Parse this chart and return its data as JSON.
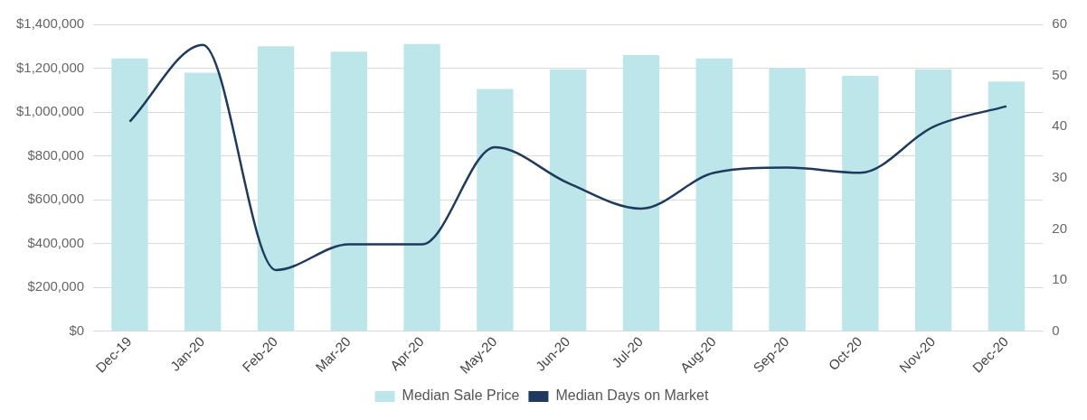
{
  "chart_data": {
    "type": "bar",
    "categories": [
      "Dec-19",
      "Jan-20",
      "Feb-20",
      "Mar-20",
      "Apr-20",
      "May-20",
      "Jun-20",
      "Jul-20",
      "Aug-20",
      "Sep-20",
      "Oct-20",
      "Nov-20",
      "Dec-20"
    ],
    "series": [
      {
        "name": "Median Sale Price",
        "color": "#bde6ea",
        "values": [
          1245000,
          1180000,
          1300000,
          1275000,
          1310000,
          1105000,
          1195000,
          1260000,
          1245000,
          1200000,
          1165000,
          1195000,
          1140000
        ]
      },
      {
        "name": "Median Days on Market",
        "type": "line",
        "axis": "y2",
        "color": "#1f3a5f",
        "values": [
          41,
          56,
          12,
          17,
          17,
          36,
          29,
          24,
          31,
          32,
          31,
          40,
          44
        ]
      }
    ],
    "ylim": [
      0,
      1400000
    ],
    "yticks": [
      {
        "value": 0,
        "label": "$0"
      },
      {
        "value": 200000,
        "label": "$200,000"
      },
      {
        "value": 400000,
        "label": "$400,000"
      },
      {
        "value": 600000,
        "label": "$600,000"
      },
      {
        "value": 800000,
        "label": "$800,000"
      },
      {
        "value": 1000000,
        "label": "$1,000,000"
      },
      {
        "value": 1200000,
        "label": "$1,200,000"
      },
      {
        "value": 1400000,
        "label": "$1,400,000"
      }
    ],
    "y2lim": [
      0,
      60
    ],
    "y2ticks": [
      0,
      10,
      20,
      30,
      40,
      50,
      60
    ],
    "grid": "y",
    "legend": "bottom",
    "marker": "none",
    "line_style": "solid"
  }
}
